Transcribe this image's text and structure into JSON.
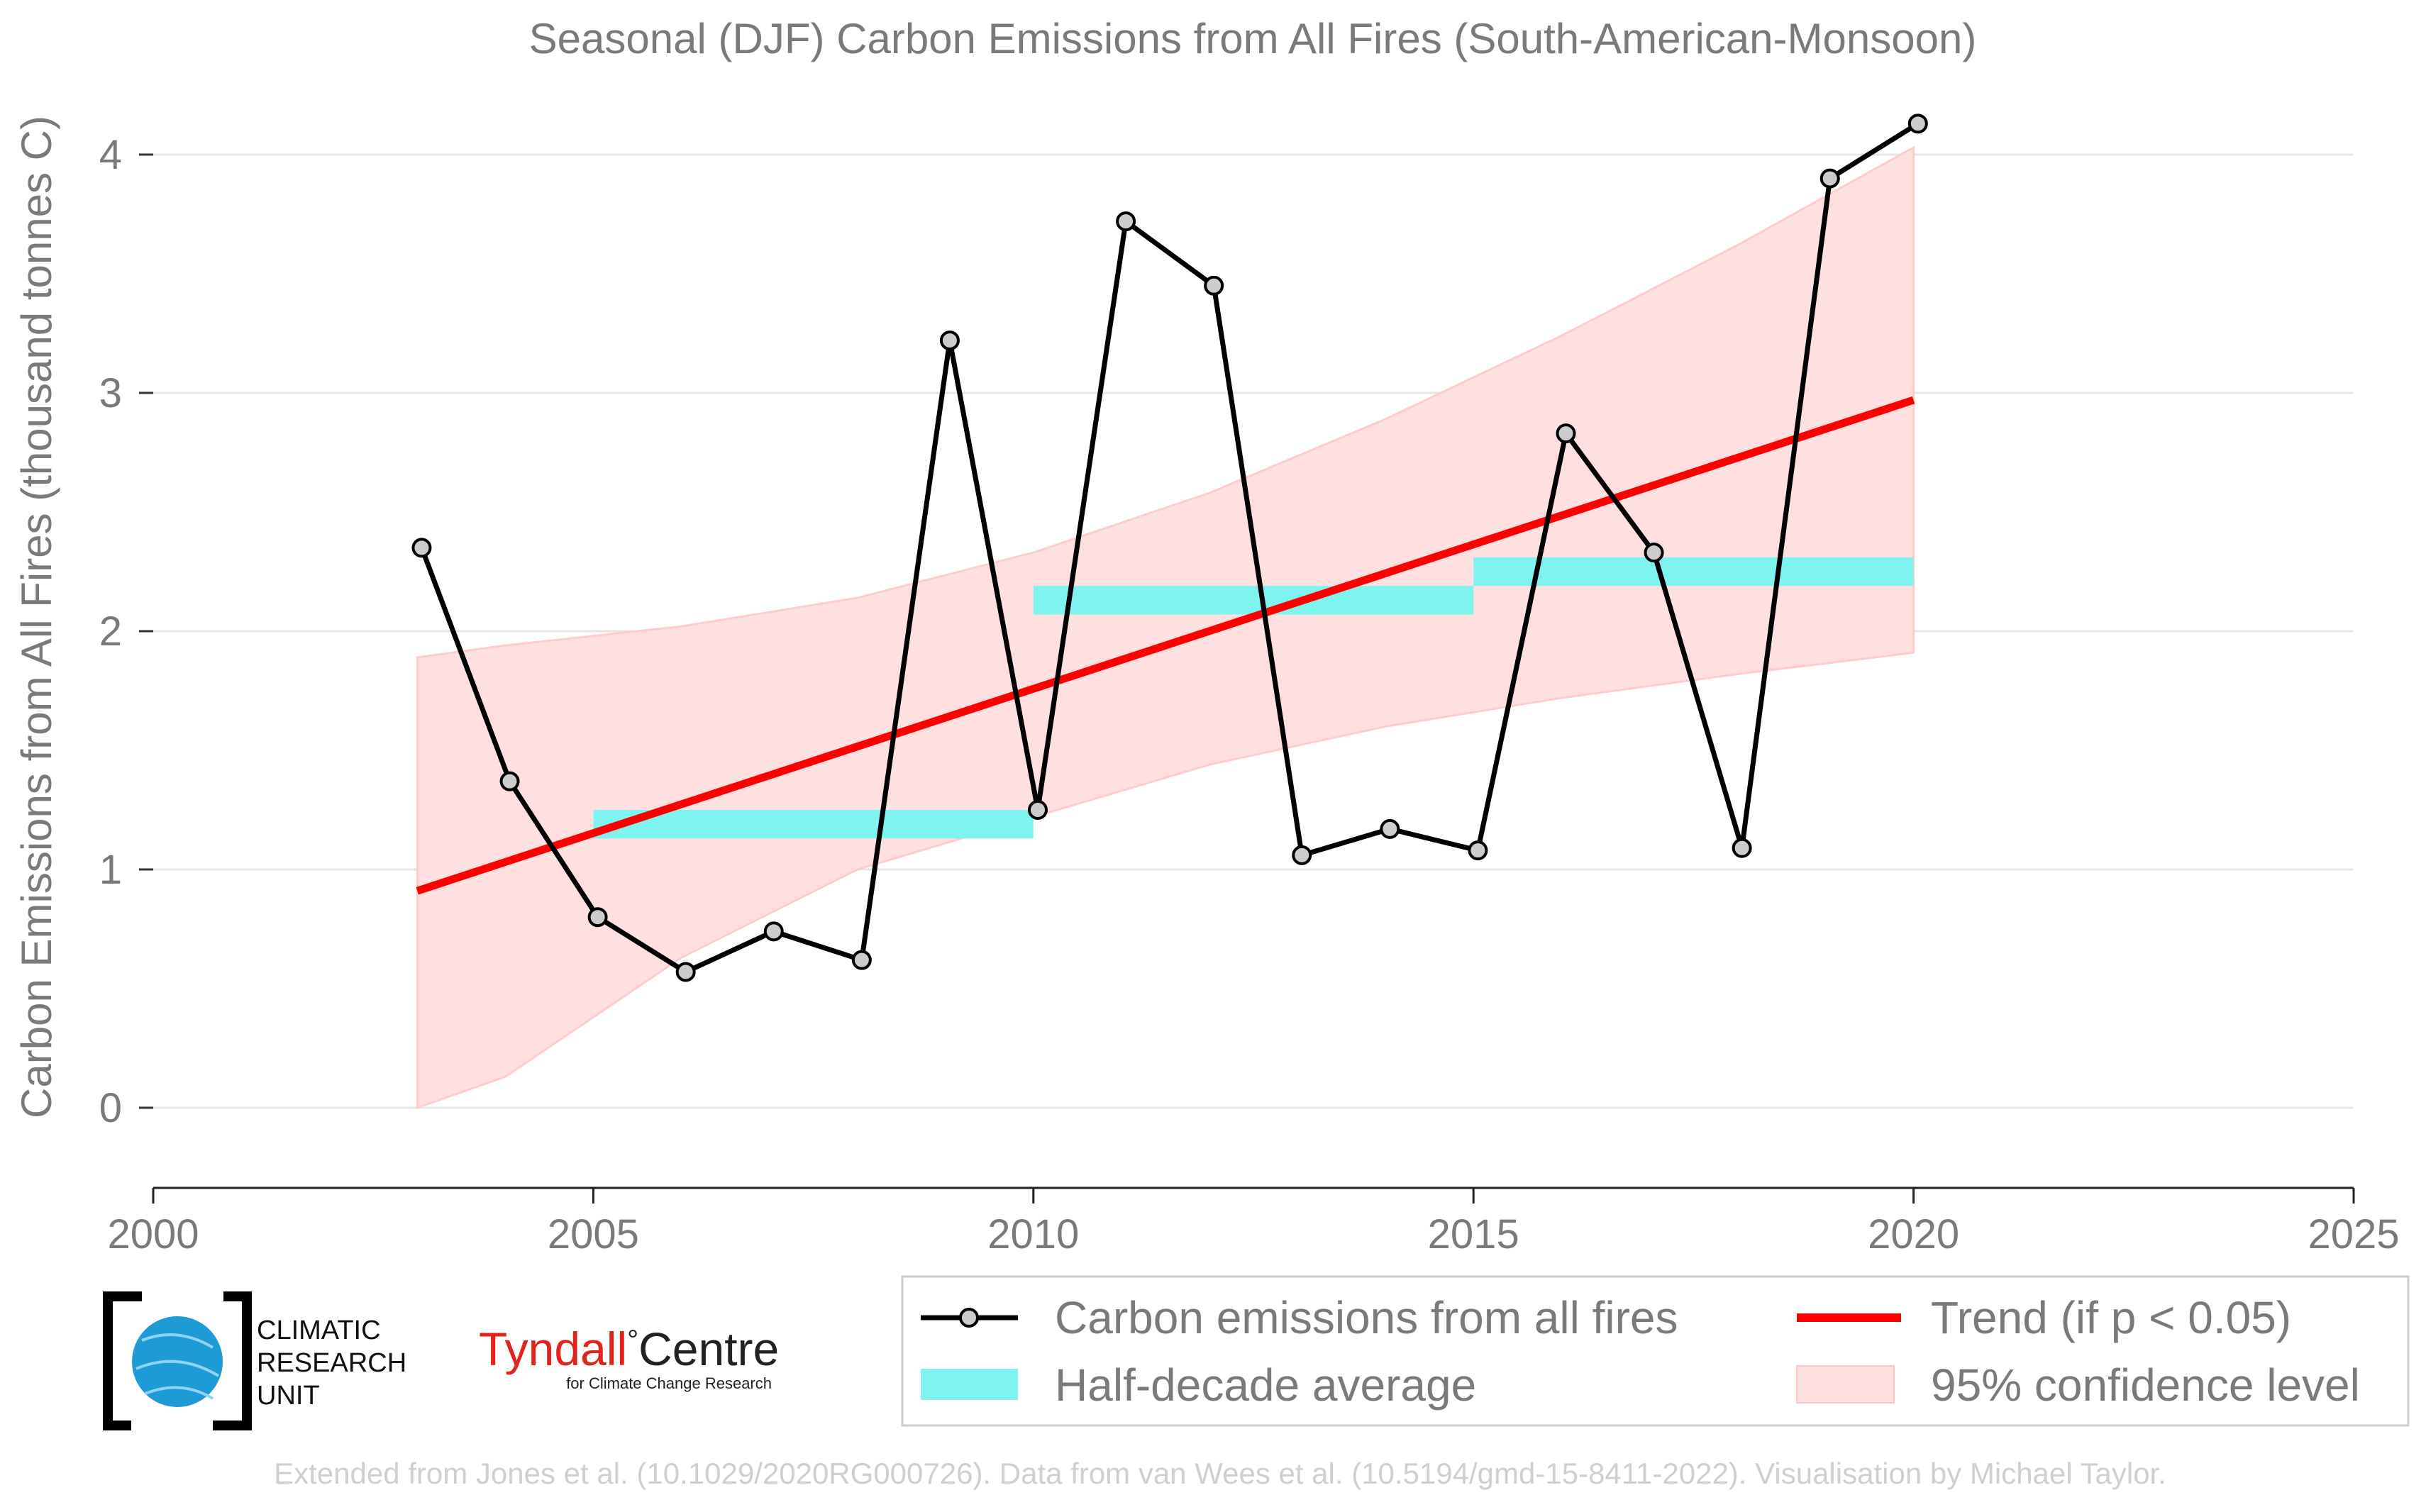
{
  "chart_data": {
    "type": "line",
    "title": "Seasonal (DJF) Carbon Emissions from All Fires (South-American-Monsoon)",
    "ylabel": "Carbon Emissions from All Fires (thousand tonnes C)",
    "xlabel": "",
    "xlim": [
      2000,
      2025
    ],
    "ylim": [
      0,
      4.2
    ],
    "xticks": [
      "2000",
      "2005",
      "2010",
      "2015",
      "2020",
      "2025"
    ],
    "yticks": [
      "0",
      "1",
      "2",
      "3",
      "4"
    ],
    "grid": "horizontal",
    "legend_position": "bottom",
    "series": [
      {
        "name": "Carbon emissions from all fires",
        "color": "#000000",
        "x": [
          2003,
          2004,
          2005,
          2006,
          2007,
          2008,
          2009,
          2010,
          2011,
          2012,
          2013,
          2014,
          2015,
          2016,
          2017,
          2018,
          2019,
          2020
        ],
        "y": [
          2.35,
          1.37,
          0.8,
          0.57,
          0.74,
          0.62,
          3.22,
          1.25,
          3.72,
          3.45,
          1.06,
          1.17,
          1.08,
          2.83,
          2.33,
          1.09,
          3.9,
          4.13
        ]
      },
      {
        "name": "Half-decade average",
        "color": "#7ff3f0",
        "segments": [
          {
            "x_start": 2005,
            "x_end": 2010,
            "y_low": 1.13,
            "y_high": 1.25
          },
          {
            "x_start": 2010,
            "x_end": 2015,
            "y_low": 2.07,
            "y_high": 2.19
          },
          {
            "x_start": 2015,
            "x_end": 2020,
            "y_low": 2.19,
            "y_high": 2.31
          }
        ]
      },
      {
        "name": "Trend (if p < 0.05)",
        "color": "#ff0000",
        "x": [
          2003,
          2020
        ],
        "y": [
          0.91,
          2.97
        ]
      },
      {
        "name": "95% confidence level",
        "color": "#ffe0e0",
        "x": [
          2003,
          2004,
          2006,
          2008,
          2010,
          2012,
          2014,
          2016,
          2018,
          2020
        ],
        "upper": [
          1.89,
          1.94,
          2.02,
          2.14,
          2.33,
          2.58,
          2.89,
          3.24,
          3.62,
          4.03
        ],
        "lower": [
          0.0,
          0.13,
          0.63,
          1.0,
          1.22,
          1.44,
          1.6,
          1.72,
          1.82,
          1.91
        ]
      }
    ]
  },
  "legend": {
    "items": [
      "Carbon emissions from all fires",
      "Trend (if p < 0.05)",
      "Half-decade average",
      "95% confidence level"
    ]
  },
  "logos": {
    "cru": [
      "CLIMATIC",
      "RESEARCH",
      "UNIT"
    ],
    "tyndall_main": "Tyndall",
    "tyndall_degree": "°",
    "tyndall_centre": "Centre",
    "tyndall_sub": "for Climate Change Research"
  },
  "footer": "Extended from Jones et al. (10.1029/2020RG000726). Data from van Wees et al. (10.5194/gmd-15-8411-2022). Visualisation by Michael Taylor."
}
